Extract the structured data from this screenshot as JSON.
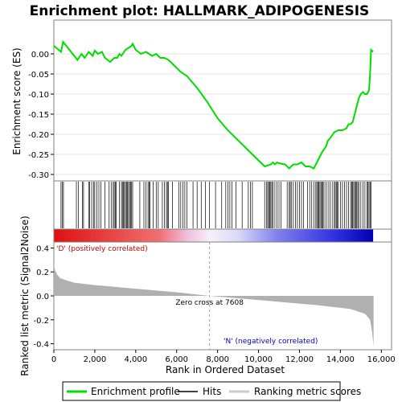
{
  "chart_data": {
    "type": "line",
    "title": "Enrichment plot: HALLMARK_ADIPOGENESIS",
    "panels": {
      "enrichment": {
        "ylabel": "Enrichment score (ES)",
        "ylim": [
          -0.3,
          0.05
        ],
        "yticks": [
          0.0,
          -0.05,
          -0.1,
          -0.15,
          -0.2,
          -0.25,
          -0.3
        ],
        "ytick_labels": [
          "0.00",
          "-0.05",
          "-0.10",
          "-0.15",
          "-0.20",
          "-0.25",
          "-0.30"
        ],
        "series": [
          {
            "name": "Enrichment profile",
            "color": "#00dd00",
            "x": [
              0,
              350,
              450,
              1150,
              1350,
              1500,
              1700,
              1900,
              2000,
              2150,
              2350,
              2500,
              2750,
              2950,
              3100,
              3200,
              3300,
              3500,
              3650,
              3800,
              3850,
              4000,
              4250,
              4500,
              4650,
              4800,
              5000,
              5200,
              5400,
              5600,
              5700,
              5900,
              6200,
              6500,
              7000,
              7500,
              8000,
              8500,
              9000,
              9500,
              10000,
              10300,
              10600,
              10700,
              10800,
              10900,
              11000,
              11300,
              11500,
              11700,
              11900,
              12100,
              12300,
              12500,
              12700,
              12900,
              13000,
              13100,
              13300,
              13400,
              13500,
              13700,
              13900,
              14100,
              14300,
              14400,
              14500,
              14600,
              14700,
              14800,
              14900,
              15000,
              15100,
              15200,
              15300,
              15400,
              15450,
              15500,
              15600
            ],
            "y": [
              0.02,
              0.005,
              0.03,
              -0.015,
              0.0,
              -0.01,
              0.005,
              -0.005,
              0.008,
              0.0,
              0.005,
              -0.01,
              -0.02,
              -0.01,
              -0.01,
              0.0,
              -0.005,
              0.01,
              0.015,
              0.02,
              0.025,
              0.01,
              0.0,
              0.005,
              0.0,
              -0.005,
              0.0,
              -0.01,
              -0.01,
              -0.015,
              -0.02,
              -0.03,
              -0.045,
              -0.055,
              -0.085,
              -0.12,
              -0.16,
              -0.19,
              -0.215,
              -0.24,
              -0.265,
              -0.28,
              -0.275,
              -0.27,
              -0.275,
              -0.27,
              -0.272,
              -0.275,
              -0.285,
              -0.275,
              -0.275,
              -0.27,
              -0.28,
              -0.28,
              -0.285,
              -0.265,
              -0.255,
              -0.245,
              -0.23,
              -0.215,
              -0.21,
              -0.195,
              -0.19,
              -0.19,
              -0.185,
              -0.175,
              -0.175,
              -0.17,
              -0.15,
              -0.13,
              -0.11,
              -0.1,
              -0.095,
              -0.1,
              -0.1,
              -0.09,
              -0.05,
              0.01,
              0.005
            ]
          }
        ]
      },
      "ranked_metric": {
        "ylabel": "Ranked list metric (Signal2Noise)",
        "xlabel": "Rank in Ordered Dataset",
        "ylim": [
          -0.45,
          0.45
        ],
        "yticks": [
          0.4,
          0.2,
          0.0,
          -0.2,
          -0.4
        ],
        "ytick_labels": [
          "0.4",
          "0.2",
          "0.0",
          "-0.2",
          "-0.4"
        ],
        "xlim": [
          0,
          16500
        ],
        "xticks": [
          0,
          2000,
          4000,
          6000,
          8000,
          10000,
          12000,
          14000,
          16000
        ],
        "xtick_labels": [
          "0",
          "2,000",
          "4,000",
          "6,000",
          "8,000",
          "10,000",
          "12,000",
          "14,000",
          "16,000"
        ],
        "metric_x": [
          0,
          50,
          150,
          300,
          600,
          1000,
          2000,
          4000,
          6000,
          7608,
          9000,
          11000,
          13000,
          14500,
          15200,
          15450,
          15550,
          15620
        ],
        "metric_y": [
          0.27,
          0.22,
          0.18,
          0.15,
          0.13,
          0.11,
          0.09,
          0.06,
          0.03,
          0.0,
          -0.02,
          -0.05,
          -0.08,
          -0.11,
          -0.15,
          -0.2,
          -0.3,
          -0.42
        ],
        "zero_cross": 7608,
        "zero_cross_label": "Zero cross at 7608",
        "positive_label": "'D' (positively correlated)",
        "negative_label": "'N' (negatively correlated)",
        "positive_color": "#cc0000",
        "negative_color": "#0000cc",
        "fill_color": "#b0b0b0"
      },
      "hits": {
        "color": "#000000",
        "positions": [
          350,
          420,
          470,
          1100,
          1200,
          1400,
          1450,
          1700,
          1750,
          1850,
          1950,
          2000,
          2100,
          2200,
          2300,
          2500,
          2700,
          2800,
          2900,
          2950,
          3000,
          3050,
          3200,
          3300,
          3350,
          3400,
          3450,
          3500,
          3550,
          3600,
          3650,
          3700,
          3750,
          3800,
          3850,
          4200,
          4400,
          4500,
          4600,
          4650,
          4700,
          4850,
          5000,
          5100,
          5300,
          5400,
          5500,
          5550,
          5600,
          5800,
          6100,
          6200,
          6300,
          6400,
          6500,
          6800,
          7000,
          7200,
          7400,
          7600,
          7900,
          8200,
          8400,
          8500,
          8600,
          8700,
          8900,
          9200,
          9500,
          9600,
          9700,
          10300,
          10400,
          10450,
          10500,
          10550,
          10600,
          10650,
          10700,
          10800,
          10900,
          11000,
          11100,
          11400,
          11500,
          11550,
          11600,
          11700,
          11800,
          11900,
          12000,
          12100,
          12200,
          12400,
          12500,
          12600,
          12700,
          12800,
          12850,
          12900,
          12950,
          13000,
          13050,
          13100,
          13150,
          13200,
          13300,
          13400,
          13500,
          13600,
          13700,
          13750,
          13800,
          13850,
          13900,
          14000,
          14100,
          14200,
          14300,
          14400,
          14500,
          14550,
          14600,
          14650,
          14700,
          14750,
          14800,
          14850,
          14900,
          15000,
          15100,
          15200,
          15300,
          15350,
          15400,
          15450,
          15500
        ]
      }
    },
    "x_max": 15600
  },
  "legend": {
    "items": [
      {
        "label": "Enrichment profile",
        "color": "#00dd00"
      },
      {
        "label": "Hits",
        "color": "#000000"
      },
      {
        "label": "Ranking metric scores",
        "color": "#cccccc"
      }
    ]
  }
}
